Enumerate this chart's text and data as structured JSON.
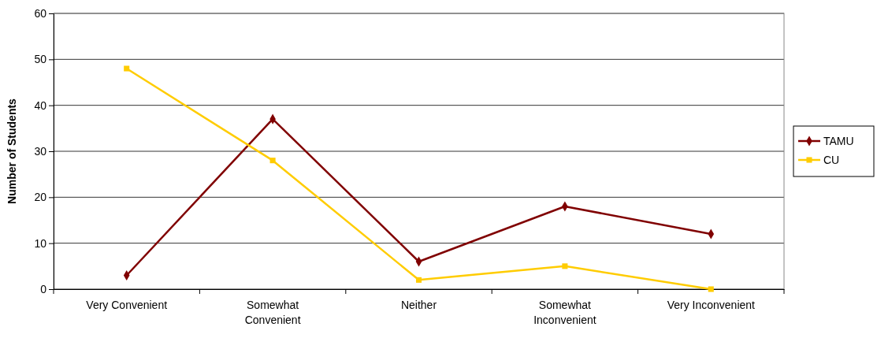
{
  "chart_data": {
    "type": "line",
    "ylabel": "Number of Students",
    "categories": [
      "Very Convenient",
      "Somewhat Convenient",
      "Neither",
      "Somewhat Inconvenient",
      "Very Inconvenient"
    ],
    "series": [
      {
        "name": "TAMU",
        "color": "#800000",
        "marker": "diamond",
        "values": [
          3,
          37,
          6,
          18,
          12
        ]
      },
      {
        "name": "CU",
        "color": "#ffcc00",
        "marker": "square",
        "values": [
          48,
          28,
          2,
          5,
          0
        ]
      }
    ],
    "ylim": [
      0,
      60
    ],
    "yticks": [
      0,
      10,
      20,
      30,
      40,
      50,
      60
    ],
    "grid": "y",
    "legend": "right"
  }
}
